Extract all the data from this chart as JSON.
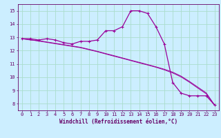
{
  "title": "",
  "xlabel": "Windchill (Refroidissement éolien,°C)",
  "ylabel": "",
  "xlim": [
    -0.5,
    23.5
  ],
  "ylim": [
    7.5,
    15.5
  ],
  "xticks": [
    0,
    1,
    2,
    3,
    4,
    5,
    6,
    7,
    8,
    9,
    10,
    11,
    12,
    13,
    14,
    15,
    16,
    17,
    18,
    19,
    20,
    21,
    22,
    23
  ],
  "yticks": [
    8,
    9,
    10,
    11,
    12,
    13,
    14,
    15
  ],
  "background_color": "#cceeff",
  "grid_color": "#aaddcc",
  "line_color": "#990099",
  "series1": [
    12.9,
    12.9,
    12.8,
    12.9,
    12.8,
    12.6,
    12.5,
    12.7,
    12.7,
    12.8,
    13.5,
    13.5,
    13.8,
    15.0,
    15.0,
    14.8,
    13.8,
    12.5,
    9.6,
    8.8,
    8.6,
    8.6,
    8.6,
    7.9
  ],
  "series2": [
    12.9,
    12.8,
    12.75,
    12.65,
    12.55,
    12.45,
    12.35,
    12.25,
    12.1,
    11.95,
    11.78,
    11.62,
    11.45,
    11.28,
    11.12,
    10.95,
    10.78,
    10.6,
    10.38,
    10.08,
    9.68,
    9.25,
    8.82,
    7.9
  ],
  "series3": [
    12.9,
    12.82,
    12.72,
    12.62,
    12.52,
    12.42,
    12.32,
    12.22,
    12.07,
    11.92,
    11.75,
    11.58,
    11.42,
    11.25,
    11.08,
    10.92,
    10.75,
    10.55,
    10.32,
    10.02,
    9.62,
    9.18,
    8.75,
    7.9
  ],
  "xlabel_fontsize": 5.5,
  "tick_fontsize": 5.0
}
